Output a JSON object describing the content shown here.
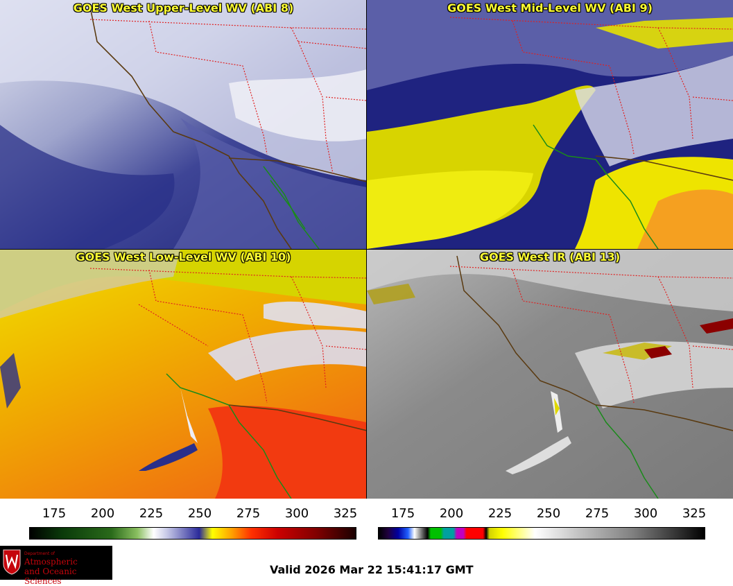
{
  "panels": [
    {
      "id": "p1",
      "title": "GOES West Upper-Level WV (ABI 8)"
    },
    {
      "id": "p2",
      "title": "GOES West Mid-Level WV (ABI 9)"
    },
    {
      "id": "p3",
      "title": "GOES West Low-Level WV (ABI 10)"
    },
    {
      "id": "p4",
      "title": "GOES West IR (ABI 13)"
    }
  ],
  "colorbar_wv": {
    "ticks": [
      "175",
      "200",
      "225",
      "250",
      "275",
      "300",
      "325"
    ]
  },
  "colorbar_ir": {
    "ticks": [
      "175",
      "200",
      "225",
      "250",
      "275",
      "300",
      "325"
    ]
  },
  "logo": {
    "dept": "Department of",
    "line1": "Atmospheric",
    "line2": "and Oceanic Sciences"
  },
  "valid_time": "Valid 2026 Mar 22 15:41:17 GMT",
  "colors": {
    "title": "#ffff33",
    "coast": "#1a8a1a",
    "border": "#5a3a10",
    "state": "#e02020"
  }
}
